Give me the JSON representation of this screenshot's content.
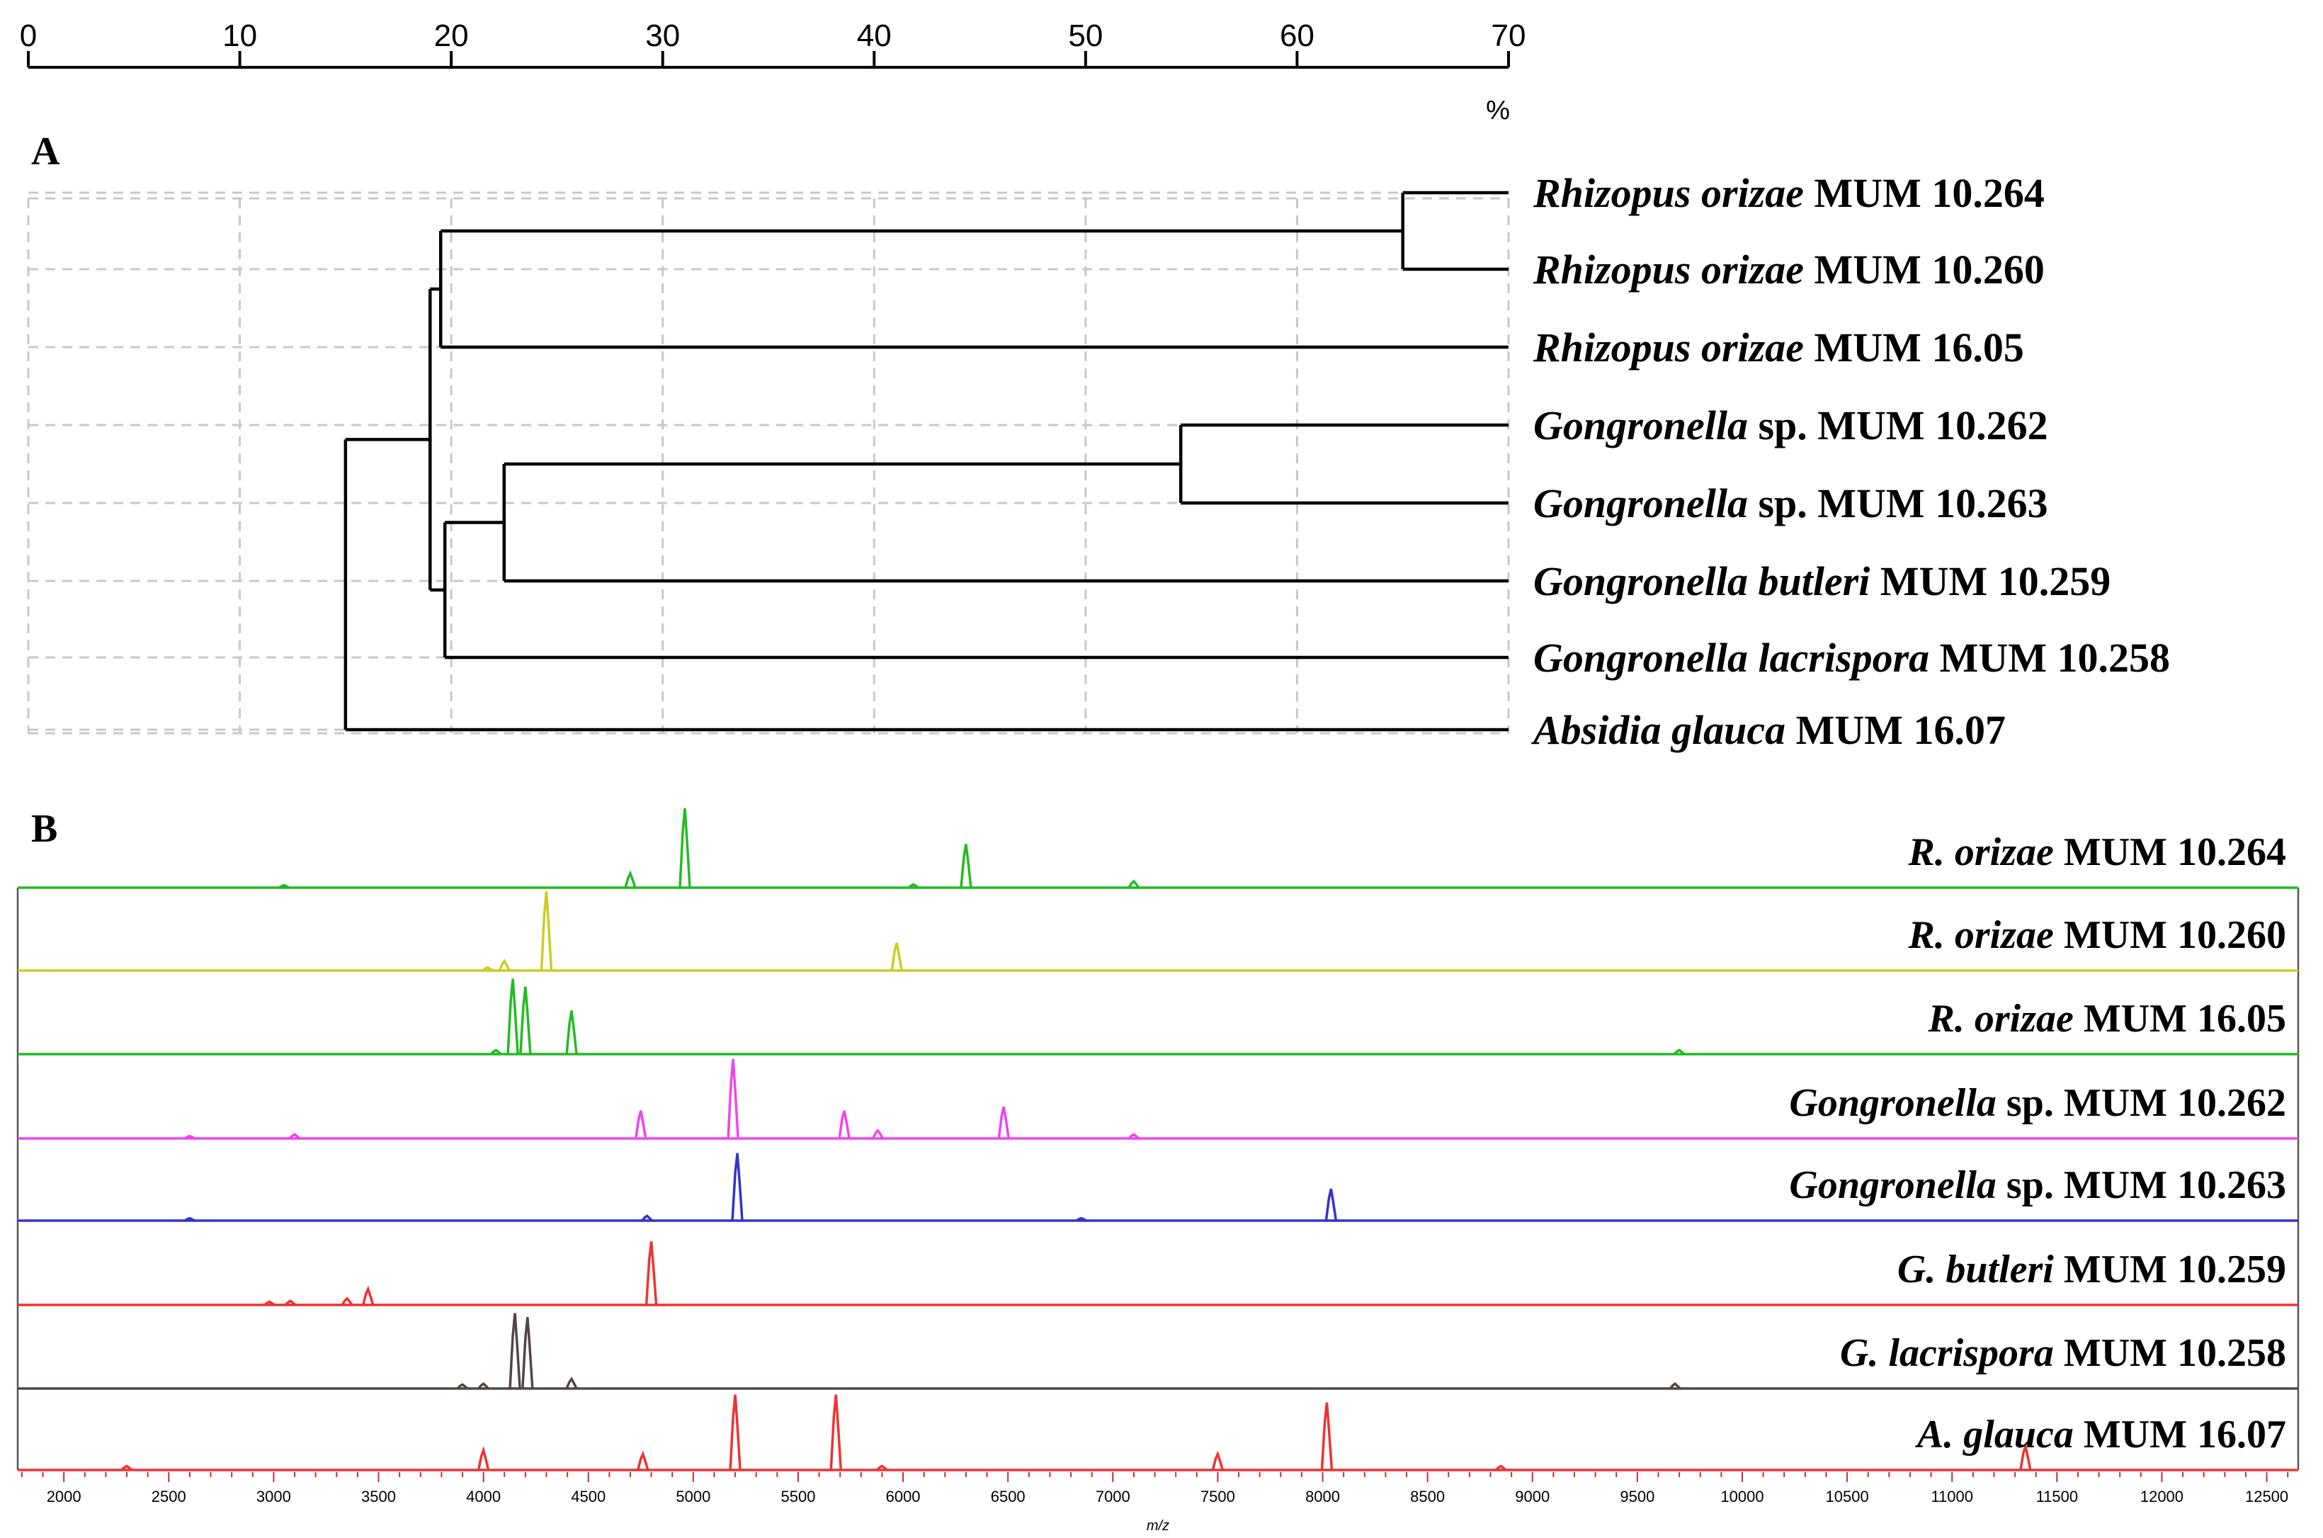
{
  "figure": {
    "panel_a_label": "A",
    "panel_b_label": "B"
  },
  "chart_data": [
    {
      "type": "dendrogram",
      "panel": "A",
      "xlim": [
        0,
        70
      ],
      "ticks": [
        0,
        10,
        20,
        30,
        40,
        50,
        60,
        70
      ],
      "unit": "%",
      "leaves": [
        {
          "italic": "Rhizopus orizae",
          "rest": "MUM 10.264"
        },
        {
          "italic": "Rhizopus orizae",
          "rest": "MUM 10.260"
        },
        {
          "italic": "Rhizopus orizae",
          "rest": "MUM 16.05"
        },
        {
          "italic": "Gongronella",
          "rest": "sp. MUM 10.262"
        },
        {
          "italic": "Gongronella",
          "rest": "sp. MUM 10.263"
        },
        {
          "italic": "Gongronella",
          "rest": "butleri",
          "rest_italic": true,
          "tail": "MUM 10.259"
        },
        {
          "italic": "Gongronella",
          "rest": "lacrispora",
          "rest_italic": true,
          "tail": "MUM 10.258"
        },
        {
          "italic": "Absidia glauca",
          "rest": "MUM 16.07"
        }
      ],
      "merges": [
        {
          "id": "n1",
          "a": "L0",
          "b": "L1",
          "height": 65
        },
        {
          "id": "n2",
          "a": "n1",
          "b": "L2",
          "height": 19.5
        },
        {
          "id": "n3",
          "a": "L3",
          "b": "L4",
          "height": 54.5
        },
        {
          "id": "n4",
          "a": "n3",
          "b": "L5",
          "height": 22.5
        },
        {
          "id": "n5",
          "a": "n4",
          "b": "L6",
          "height": 19.7
        },
        {
          "id": "n6",
          "a": "n2",
          "b": "n5",
          "height": 19.0
        },
        {
          "id": "n7",
          "a": "n6",
          "b": "L7",
          "height": 15.0
        }
      ]
    },
    {
      "type": "line",
      "panel": "B",
      "xlabel": "m/z",
      "xlim": [
        1780,
        12650
      ],
      "ticks": [
        2000,
        2500,
        3000,
        3500,
        4000,
        4500,
        5000,
        5500,
        6000,
        6500,
        7000,
        7500,
        8000,
        8500,
        9000,
        9500,
        10000,
        10500,
        11000,
        11500,
        12000,
        12500
      ],
      "series": [
        {
          "italic": "R. orizae",
          "rest": "MUM 10.264",
          "color": "#22bb22",
          "peaks": [
            [
              4700,
              0.18
            ],
            [
              4960,
              1.0
            ],
            [
              6300,
              0.55
            ],
            [
              7100,
              0.08
            ],
            [
              3050,
              0.03
            ],
            [
              6050,
              0.04
            ]
          ]
        },
        {
          "italic": "R. orizae",
          "rest": "MUM 10.260",
          "color": "#cccc22",
          "peaks": [
            [
              4100,
              0.12
            ],
            [
              4300,
              1.0
            ],
            [
              5970,
              0.35
            ],
            [
              4020,
              0.04
            ]
          ]
        },
        {
          "italic": "R. orizae",
          "rest": "MUM 16.05",
          "color": "#22bb22",
          "peaks": [
            [
              4140,
              0.95
            ],
            [
              4200,
              0.85
            ],
            [
              4420,
              0.55
            ],
            [
              4060,
              0.05
            ],
            [
              9700,
              0.05
            ]
          ]
        },
        {
          "italic": "Gongronella",
          "rest": "sp. MUM 10.262",
          "color": "#ee44ee",
          "peaks": [
            [
              4750,
              0.35
            ],
            [
              5190,
              1.0
            ],
            [
              5720,
              0.35
            ],
            [
              5880,
              0.1
            ],
            [
              6480,
              0.4
            ],
            [
              3100,
              0.05
            ],
            [
              2600,
              0.03
            ],
            [
              7100,
              0.05
            ]
          ]
        },
        {
          "italic": "Gongronella",
          "rest": "sp. MUM 10.263",
          "color": "#3333cc",
          "peaks": [
            [
              5210,
              0.85
            ],
            [
              8040,
              0.4
            ],
            [
              4780,
              0.06
            ],
            [
              6850,
              0.03
            ],
            [
              2600,
              0.03
            ]
          ]
        },
        {
          "italic": "G.",
          "rest": "butleri",
          "rest_italic": true,
          "tail": "MUM 10.259",
          "color": "#ee3333",
          "peaks": [
            [
              4800,
              0.8
            ],
            [
              3450,
              0.2
            ],
            [
              3350,
              0.08
            ],
            [
              3080,
              0.05
            ],
            [
              2980,
              0.04
            ]
          ]
        },
        {
          "italic": "G.",
          "rest": "lacrispora",
          "rest_italic": true,
          "tail": "MUM 10.258",
          "color": "#554444",
          "peaks": [
            [
              4150,
              0.95
            ],
            [
              4210,
              0.9
            ],
            [
              4420,
              0.12
            ],
            [
              4000,
              0.06
            ],
            [
              3900,
              0.05
            ],
            [
              9680,
              0.06
            ]
          ]
        },
        {
          "italic": "A. glauca",
          "rest": "MUM 16.07",
          "color": "#ee3333",
          "peaks": [
            [
              5200,
              0.95
            ],
            [
              5680,
              0.95
            ],
            [
              8020,
              0.85
            ],
            [
              4000,
              0.25
            ],
            [
              4760,
              0.2
            ],
            [
              7500,
              0.2
            ],
            [
              11350,
              0.3
            ],
            [
              2300,
              0.05
            ],
            [
              8850,
              0.05
            ],
            [
              5900,
              0.05
            ]
          ]
        }
      ]
    }
  ]
}
